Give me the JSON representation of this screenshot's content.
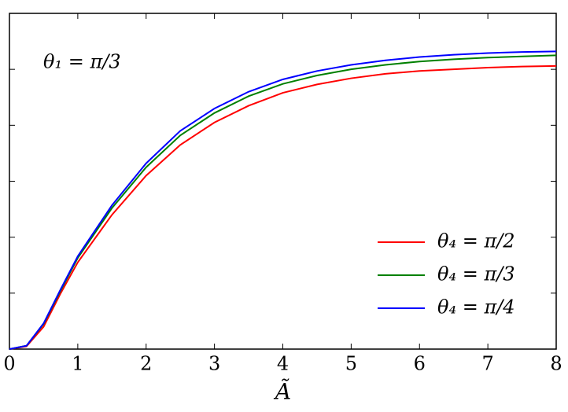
{
  "chart_data": {
    "type": "line",
    "annotation": "θ₁ = π/3",
    "xlabel": "Ã",
    "x": [
      0,
      0.25,
      0.5,
      0.75,
      1,
      1.5,
      2,
      2.5,
      3,
      3.5,
      4,
      4.5,
      5,
      5.5,
      6,
      6.5,
      7,
      7.5,
      8
    ],
    "series": [
      {
        "name": "θ₄ = π/2",
        "color": "#ff0000",
        "values": [
          0,
          0.005,
          0.04,
          0.1,
          0.155,
          0.24,
          0.31,
          0.365,
          0.405,
          0.435,
          0.458,
          0.473,
          0.484,
          0.492,
          0.497,
          0.5,
          0.503,
          0.505,
          0.506
        ]
      },
      {
        "name": "θ₄ = π/3",
        "color": "#008000",
        "values": [
          0,
          0.006,
          0.045,
          0.105,
          0.163,
          0.252,
          0.325,
          0.382,
          0.422,
          0.452,
          0.474,
          0.489,
          0.5,
          0.508,
          0.514,
          0.518,
          0.521,
          0.523,
          0.525
        ]
      },
      {
        "name": "θ₄ = π/4",
        "color": "#0000ff",
        "values": [
          0,
          0.006,
          0.046,
          0.107,
          0.166,
          0.257,
          0.332,
          0.39,
          0.43,
          0.46,
          0.482,
          0.497,
          0.508,
          0.516,
          0.522,
          0.526,
          0.529,
          0.531,
          0.532
        ]
      }
    ],
    "xlim": [
      0,
      8
    ],
    "xticks": [
      0,
      1,
      2,
      3,
      4,
      5,
      6,
      7,
      8
    ],
    "ylim": [
      0,
      0.6
    ],
    "yticks": [
      0.1,
      0.2,
      0.3,
      0.4,
      0.5
    ],
    "legend": "lower right"
  }
}
